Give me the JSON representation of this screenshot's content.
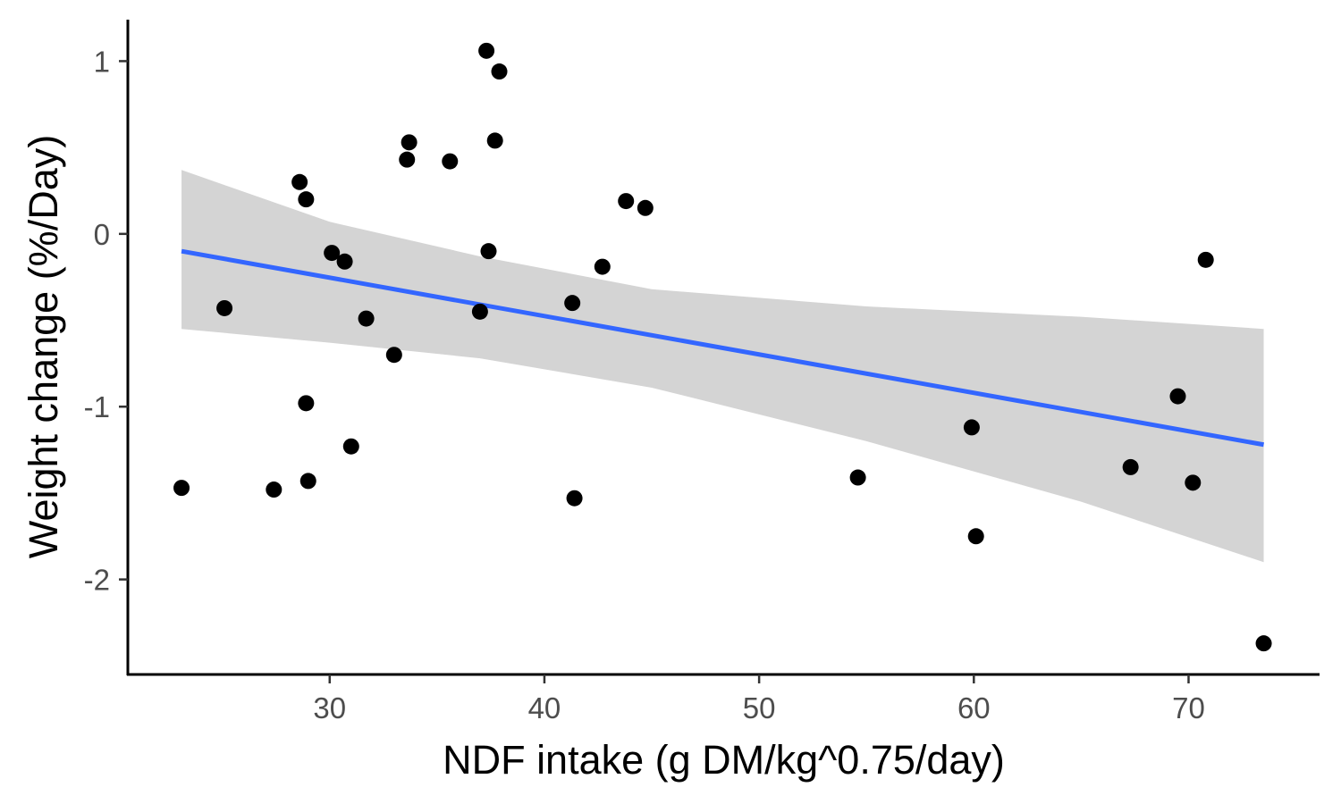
{
  "chart_data": {
    "type": "scatter",
    "xlabel": "NDF intake (g DM/kg^0.75/day)",
    "ylabel": "Weight change (%/Day)",
    "xlim": [
      20.6,
      76.1
    ],
    "ylim": [
      -2.55,
      1.24
    ],
    "x_ticks": [
      30,
      40,
      50,
      60,
      70
    ],
    "y_ticks": [
      -2,
      -1,
      0,
      1
    ],
    "grid": false,
    "legend": "none",
    "colors": {
      "points": "#000000",
      "trend_line": "#3366ff",
      "confidence_band": "#d4d4d4",
      "axis": "#000000",
      "tick_label": "#4d4d4d"
    },
    "points": [
      {
        "x": 23.1,
        "y": -1.47
      },
      {
        "x": 25.1,
        "y": -0.43
      },
      {
        "x": 27.4,
        "y": -1.48
      },
      {
        "x": 28.6,
        "y": 0.3
      },
      {
        "x": 28.9,
        "y": 0.2
      },
      {
        "x": 28.9,
        "y": -0.98
      },
      {
        "x": 29.0,
        "y": -1.43
      },
      {
        "x": 30.1,
        "y": -0.11
      },
      {
        "x": 30.7,
        "y": -0.16
      },
      {
        "x": 31.0,
        "y": -1.23
      },
      {
        "x": 31.7,
        "y": -0.49
      },
      {
        "x": 33.0,
        "y": -0.7
      },
      {
        "x": 33.6,
        "y": 0.43
      },
      {
        "x": 33.7,
        "y": 0.53
      },
      {
        "x": 35.6,
        "y": 0.42
      },
      {
        "x": 37.0,
        "y": -0.45
      },
      {
        "x": 37.3,
        "y": 1.06
      },
      {
        "x": 37.4,
        "y": -0.1
      },
      {
        "x": 37.7,
        "y": 0.54
      },
      {
        "x": 37.9,
        "y": 0.94
      },
      {
        "x": 41.3,
        "y": -0.4
      },
      {
        "x": 41.4,
        "y": -1.53
      },
      {
        "x": 42.7,
        "y": -0.19
      },
      {
        "x": 43.8,
        "y": 0.19
      },
      {
        "x": 44.7,
        "y": 0.15
      },
      {
        "x": 54.6,
        "y": -1.41
      },
      {
        "x": 59.9,
        "y": -1.12
      },
      {
        "x": 60.1,
        "y": -1.75
      },
      {
        "x": 67.3,
        "y": -1.35
      },
      {
        "x": 69.5,
        "y": -0.94
      },
      {
        "x": 70.2,
        "y": -1.44
      },
      {
        "x": 70.8,
        "y": -0.15
      },
      {
        "x": 73.5,
        "y": -2.37
      }
    ],
    "trend_line": {
      "x": [
        23.1,
        73.5
      ],
      "y": [
        -0.1,
        -1.22
      ]
    },
    "confidence_band": {
      "x": [
        23.1,
        30,
        37,
        45,
        55,
        65,
        73.5
      ],
      "upper": [
        0.37,
        0.07,
        -0.13,
        -0.32,
        -0.42,
        -0.48,
        -0.55
      ],
      "lower": [
        -0.55,
        -0.63,
        -0.72,
        -0.89,
        -1.2,
        -1.55,
        -1.9
      ]
    }
  }
}
